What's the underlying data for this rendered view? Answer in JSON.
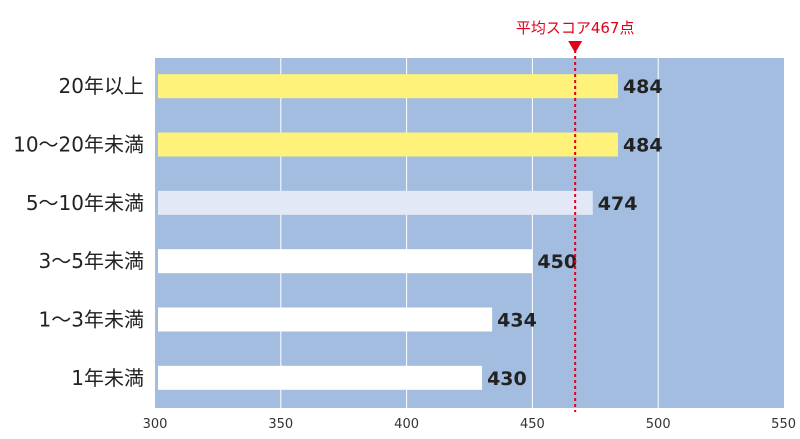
{
  "chart_data": {
    "type": "bar",
    "orientation": "horizontal",
    "categories": [
      "20年以上",
      "10～20年未満",
      "5～10年未満",
      "3～5年未満",
      "1～3年未満",
      "1年未満"
    ],
    "values": [
      484,
      484,
      474,
      450,
      434,
      430
    ],
    "value_labels": [
      "484",
      "484",
      "474",
      "450",
      "434",
      "430"
    ],
    "xlim": [
      300,
      550
    ],
    "xticks": [
      300,
      350,
      400,
      450,
      500,
      550
    ],
    "xtick_labels": [
      "300",
      "350",
      "400",
      "450",
      "500",
      "550"
    ],
    "grid": true,
    "average": {
      "value": 467,
      "label": "平均スコア467点"
    },
    "colors": {
      "plot_background": "#a2bde0",
      "gridline": "#ffffff",
      "average_line": "#e0001b",
      "bars": [
        "#fef27a",
        "#fef27a",
        "#e3e8f6",
        "#ffffff",
        "#ffffff",
        "#ffffff"
      ]
    }
  }
}
